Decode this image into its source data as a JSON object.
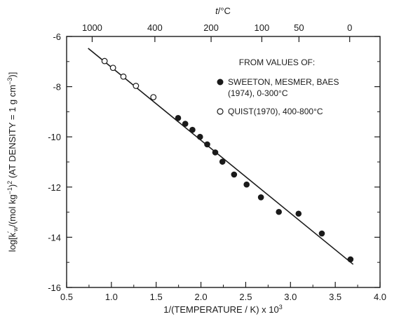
{
  "chart_data": {
    "type": "scatter",
    "xlabel": "1/(TEMPERATURE / K) x 10",
    "xlabel_sup": "3",
    "ylabel_parts": {
      "log": "log[",
      "k": "k",
      "prime": "′",
      "w": "w",
      "slash": "/(mol kg",
      "minus1": "−1",
      "close": ")",
      "sq": "2",
      "density": " (AT DENSITY = 1 g cm",
      "minus3": "−3",
      "end": ")]"
    },
    "top_axis_label_t": "t",
    "top_axis_label_unit": "/°C",
    "xlim": [
      0.5,
      4.0
    ],
    "ylim": [
      -16,
      -6
    ],
    "x_ticks": [
      0.5,
      1.0,
      1.5,
      2.0,
      2.5,
      3.0,
      3.5,
      4.0
    ],
    "x_tick_labels": [
      "0.5",
      "1.0",
      "1.5",
      "2.0",
      "2.5",
      "3.0",
      "3.5",
      "4.0"
    ],
    "y_ticks": [
      -16,
      -14,
      -12,
      -10,
      -8,
      -6
    ],
    "y_tick_labels": [
      "-16",
      "-14",
      "-12",
      "-10",
      "-8",
      "-6"
    ],
    "top_ticks_c": [
      1000,
      400,
      200,
      100,
      50,
      0
    ],
    "top_tick_labels": [
      "1000",
      "400",
      "200",
      "100",
      "50",
      "0"
    ],
    "legend": {
      "header": "FROM VALUES OF:",
      "entries": [
        {
          "marker": "filled",
          "lines": [
            "SWEETON, MESMER, BAES",
            "(1974), 0-300°C"
          ]
        },
        {
          "marker": "open",
          "lines": [
            "QUIST(1970), 400-800°C"
          ]
        }
      ]
    },
    "fit_line": {
      "x": [
        0.74,
        3.7
      ],
      "y": [
        -6.47,
        -15.08
      ]
    },
    "series": [
      {
        "marker": "open",
        "x": [
          0.924,
          1.018,
          1.134,
          1.274,
          1.469
        ],
        "y": [
          -6.98,
          -7.25,
          -7.6,
          -7.97,
          -8.42
        ]
      },
      {
        "marker": "filled",
        "x": [
          1.745,
          1.825,
          1.905,
          1.99,
          2.07,
          2.16,
          2.24,
          2.37,
          2.51,
          2.67,
          2.87,
          3.09,
          3.35,
          3.67
        ],
        "y": [
          -9.25,
          -9.48,
          -9.72,
          -10.0,
          -10.3,
          -10.62,
          -10.99,
          -11.5,
          -11.9,
          -12.41,
          -12.99,
          -13.06,
          -13.85,
          -14.88
        ]
      }
    ]
  }
}
